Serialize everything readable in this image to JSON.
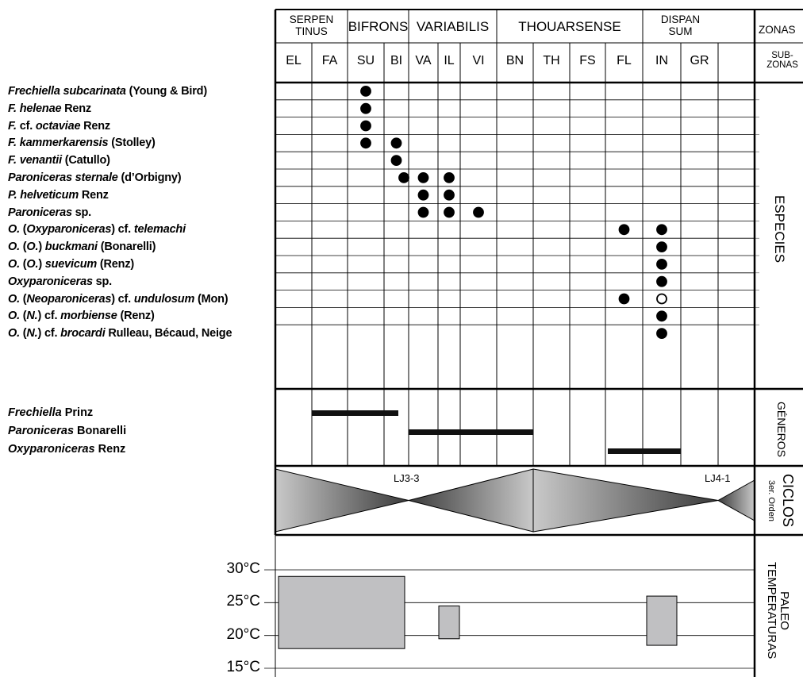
{
  "zones": [
    {
      "label": "SERPEN\nTINUS"
    },
    {
      "label": "BIFRONS"
    },
    {
      "label": "VARIABILIS"
    },
    {
      "label": "THOUARSENSE"
    },
    {
      "label": "DISPAN\nSUM"
    }
  ],
  "zones_header": "ZONAS",
  "subzones_header": "SUB-\nZONAS",
  "subzones": [
    "EL",
    "FA",
    "SU",
    "BI",
    "VA",
    "IL",
    "VI",
    "BN",
    "TH",
    "FS",
    "FL",
    "IN",
    "GR"
  ],
  "species_section_label": "ESPECIES",
  "genera_section_label": "GÉNEROS",
  "cycles_section_label": "CICLOS",
  "cycles_order_label": "3er. Orden",
  "paleotemp_section_label": "PALEO\nTEMPERATURAS",
  "species": [
    {
      "parts": [
        {
          "t": "Frechiella subcarinata",
          "i": true
        },
        {
          "t": " (Young & Bird)",
          "i": false
        }
      ],
      "records": [
        {
          "sz": "SU",
          "fill": "solid"
        }
      ]
    },
    {
      "parts": [
        {
          "t": "F. helenae",
          "i": true
        },
        {
          "t": " Renz",
          "i": false
        }
      ],
      "records": [
        {
          "sz": "SU",
          "fill": "solid"
        }
      ]
    },
    {
      "parts": [
        {
          "t": "F.",
          "i": true
        },
        {
          "t": " cf. ",
          "i": false
        },
        {
          "t": "octaviae",
          "i": true
        },
        {
          "t": " Renz",
          "i": false
        }
      ],
      "records": [
        {
          "sz": "SU",
          "fill": "solid"
        }
      ]
    },
    {
      "parts": [
        {
          "t": "F. kammerkarensis",
          "i": true
        },
        {
          "t": " (Stolley)",
          "i": false
        }
      ],
      "records": [
        {
          "sz": "SU",
          "fill": "solid"
        },
        {
          "sz": "BI",
          "fill": "solid"
        }
      ]
    },
    {
      "parts": [
        {
          "t": "F. venantii",
          "i": true
        },
        {
          "t": " (Catullo)",
          "i": false
        }
      ],
      "records": [
        {
          "sz": "BI",
          "fill": "solid"
        }
      ]
    },
    {
      "parts": [
        {
          "t": "Paroniceras sternale",
          "i": true
        },
        {
          "t": " (d’Orbigny)",
          "i": false
        }
      ],
      "records": [
        {
          "sz": "BI",
          "fill": "solid",
          "edge": true
        },
        {
          "sz": "VA",
          "fill": "solid"
        },
        {
          "sz": "IL",
          "fill": "solid"
        }
      ]
    },
    {
      "parts": [
        {
          "t": "P. helveticum",
          "i": true
        },
        {
          "t": " Renz",
          "i": false
        }
      ],
      "records": [
        {
          "sz": "VA",
          "fill": "solid"
        },
        {
          "sz": "IL",
          "fill": "solid"
        }
      ]
    },
    {
      "parts": [
        {
          "t": "Paroniceras",
          "i": true
        },
        {
          "t": " sp.",
          "i": false
        }
      ],
      "records": [
        {
          "sz": "VA",
          "fill": "solid"
        },
        {
          "sz": "IL",
          "fill": "solid"
        },
        {
          "sz": "VI",
          "fill": "solid"
        }
      ]
    },
    {
      "parts": [
        {
          "t": "O.",
          "i": true
        },
        {
          "t": " (",
          "i": false
        },
        {
          "t": "Oxyparoniceras",
          "i": true
        },
        {
          "t": ") cf. ",
          "i": false
        },
        {
          "t": "telemachi",
          "i": true
        }
      ],
      "records": [
        {
          "sz": "FL",
          "fill": "solid"
        },
        {
          "sz": "IN",
          "fill": "solid"
        }
      ]
    },
    {
      "parts": [
        {
          "t": "O.",
          "i": true
        },
        {
          "t": " (",
          "i": false
        },
        {
          "t": "O.",
          "i": true
        },
        {
          "t": ") ",
          "i": false
        },
        {
          "t": "buckmani",
          "i": true
        },
        {
          "t": " (Bonarelli)",
          "i": false
        }
      ],
      "records": [
        {
          "sz": "IN",
          "fill": "solid"
        }
      ]
    },
    {
      "parts": [
        {
          "t": "O.",
          "i": true
        },
        {
          "t": " (",
          "i": false
        },
        {
          "t": "O.",
          "i": true
        },
        {
          "t": ") ",
          "i": false
        },
        {
          "t": "suevicum",
          "i": true
        },
        {
          "t": " (Renz)",
          "i": false
        }
      ],
      "records": [
        {
          "sz": "IN",
          "fill": "solid"
        }
      ]
    },
    {
      "parts": [
        {
          "t": "Oxyparoniceras",
          "i": true
        },
        {
          "t": " sp.",
          "i": false
        }
      ],
      "records": [
        {
          "sz": "IN",
          "fill": "solid"
        }
      ]
    },
    {
      "parts": [
        {
          "t": "O.",
          "i": true
        },
        {
          "t": " (",
          "i": false
        },
        {
          "t": "Neoparoniceras",
          "i": true
        },
        {
          "t": ") cf. ",
          "i": false
        },
        {
          "t": "undulosum",
          "i": true
        },
        {
          "t": " (Mon)",
          "i": false
        }
      ],
      "records": [
        {
          "sz": "FL",
          "fill": "solid"
        },
        {
          "sz": "IN",
          "fill": "open"
        }
      ]
    },
    {
      "parts": [
        {
          "t": "O.",
          "i": true
        },
        {
          "t": " (",
          "i": false
        },
        {
          "t": "N.",
          "i": true
        },
        {
          "t": ") cf. ",
          "i": false
        },
        {
          "t": "morbiense",
          "i": true
        },
        {
          "t": " (Renz)",
          "i": false
        }
      ],
      "records": [
        {
          "sz": "IN",
          "fill": "solid"
        }
      ]
    },
    {
      "parts": [
        {
          "t": "O.",
          "i": true
        },
        {
          "t": " (",
          "i": false
        },
        {
          "t": "N.",
          "i": true
        },
        {
          "t": ") cf. ",
          "i": false
        },
        {
          "t": "brocardi",
          "i": true
        },
        {
          "t": " Rulleau, Bécaud, Neige",
          "i": false
        }
      ],
      "records": [
        {
          "sz": "IN",
          "fill": "solid"
        }
      ]
    }
  ],
  "genera": [
    {
      "parts": [
        {
          "t": "Frechiella",
          "i": true
        },
        {
          "t": " Prinz",
          "i": false
        }
      ],
      "range": [
        "FA",
        "BI"
      ]
    },
    {
      "parts": [
        {
          "t": "Paroniceras",
          "i": true
        },
        {
          "t": " Bonarelli",
          "i": false
        }
      ],
      "range": [
        "BI",
        "VI"
      ]
    },
    {
      "parts": [
        {
          "t": "Oxyparoniceras",
          "i": true
        },
        {
          "t": " Renz",
          "i": false
        }
      ],
      "range": [
        "FL",
        "IN"
      ]
    }
  ],
  "cycles": [
    {
      "label": "LJ3-3"
    },
    {
      "label": "LJ4-1"
    }
  ],
  "temperature_axis": {
    "ticks": [
      "30°C",
      "25°C",
      "20°C",
      "15°C"
    ],
    "values": [
      30,
      25,
      20,
      15
    ]
  },
  "paleotemperatures": [
    {
      "from": "EL",
      "to": "BI",
      "low": 18,
      "high": 29,
      "fill": "#c0c0c2"
    },
    {
      "from": "IL",
      "to": "IL",
      "low": 19.5,
      "high": 24.5,
      "fill": "#c0c0c2"
    },
    {
      "from": "IN",
      "to": "IN",
      "low": 18.5,
      "high": 26,
      "fill": "#c0c0c2"
    }
  ]
}
